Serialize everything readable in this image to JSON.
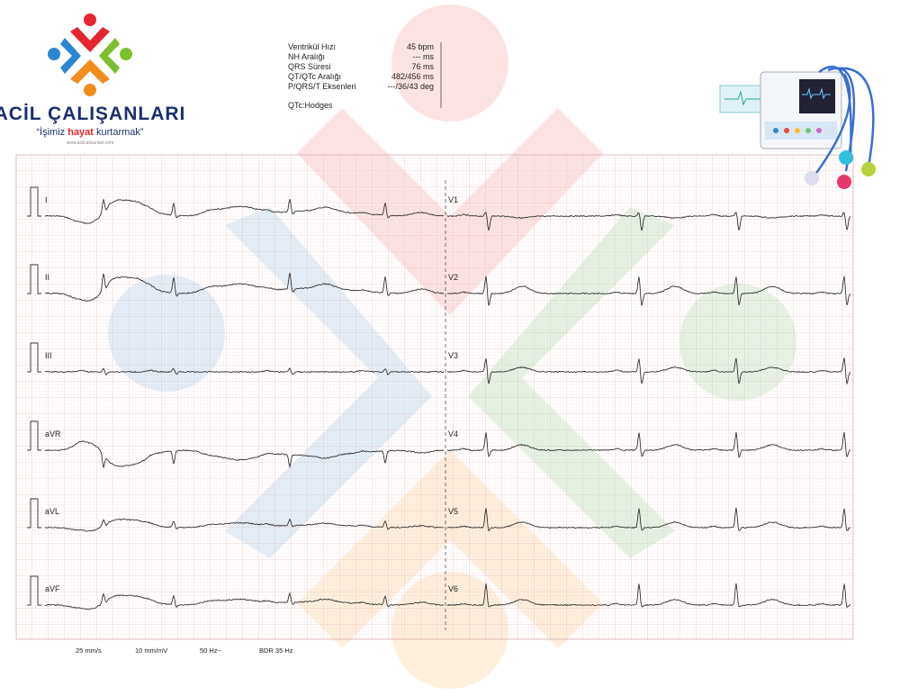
{
  "logo": {
    "name": "ACİL ÇALIŞANLARI",
    "tagline": [
      "“İşimiz ",
      "hayat",
      " kurtarmak”"
    ],
    "website": "www.acilcalisanlari.com"
  },
  "measurements": {
    "rows": [
      [
        "Ventrikül Hızı",
        "45 bpm"
      ],
      [
        "NH Aralığı",
        "--- ms"
      ],
      [
        "QRS Süresi",
        "76 ms"
      ],
      [
        "QT/QTc Aralığı",
        "482/456 ms"
      ],
      [
        "P/QRS/T Eksenleri",
        "---/36/43 deg"
      ]
    ],
    "note": "QTc:Hodges"
  },
  "leads": {
    "left": [
      "I",
      "II",
      "III",
      "aVR",
      "aVL",
      "aVF"
    ],
    "right": [
      "V1",
      "V2",
      "V3",
      "V4",
      "V5",
      "V6"
    ]
  },
  "footer": [
    "25 mm/s",
    "10 mm/mV",
    "50 Hz~",
    "BDR 35 Hz"
  ]
}
